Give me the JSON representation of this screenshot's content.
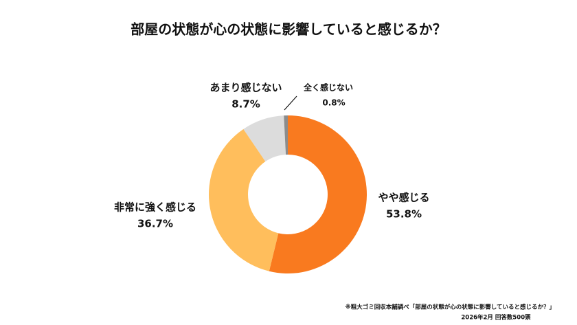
{
  "chart_data": {
    "type": "donut",
    "title": "部屋の状態が心の状態に影響していると感じるか？",
    "categories": [
      "やや感じる",
      "非常に強く感じる",
      "あまり感じない",
      "全く感じない"
    ],
    "values": [
      53.8,
      36.7,
      8.7,
      0.8
    ],
    "value_labels": [
      "53.8%",
      "36.7%",
      "8.7%",
      "0.8%"
    ],
    "colors": [
      "#f97a1f",
      "#ffbe5c",
      "#dcdcdc",
      "#8c8c8c"
    ],
    "notes": [
      "※粗大ゴミ回収本舗調べ「部屋の状態が心の状態に影響していると感じるか？」",
      "2026年2月 回答数500票"
    ]
  }
}
